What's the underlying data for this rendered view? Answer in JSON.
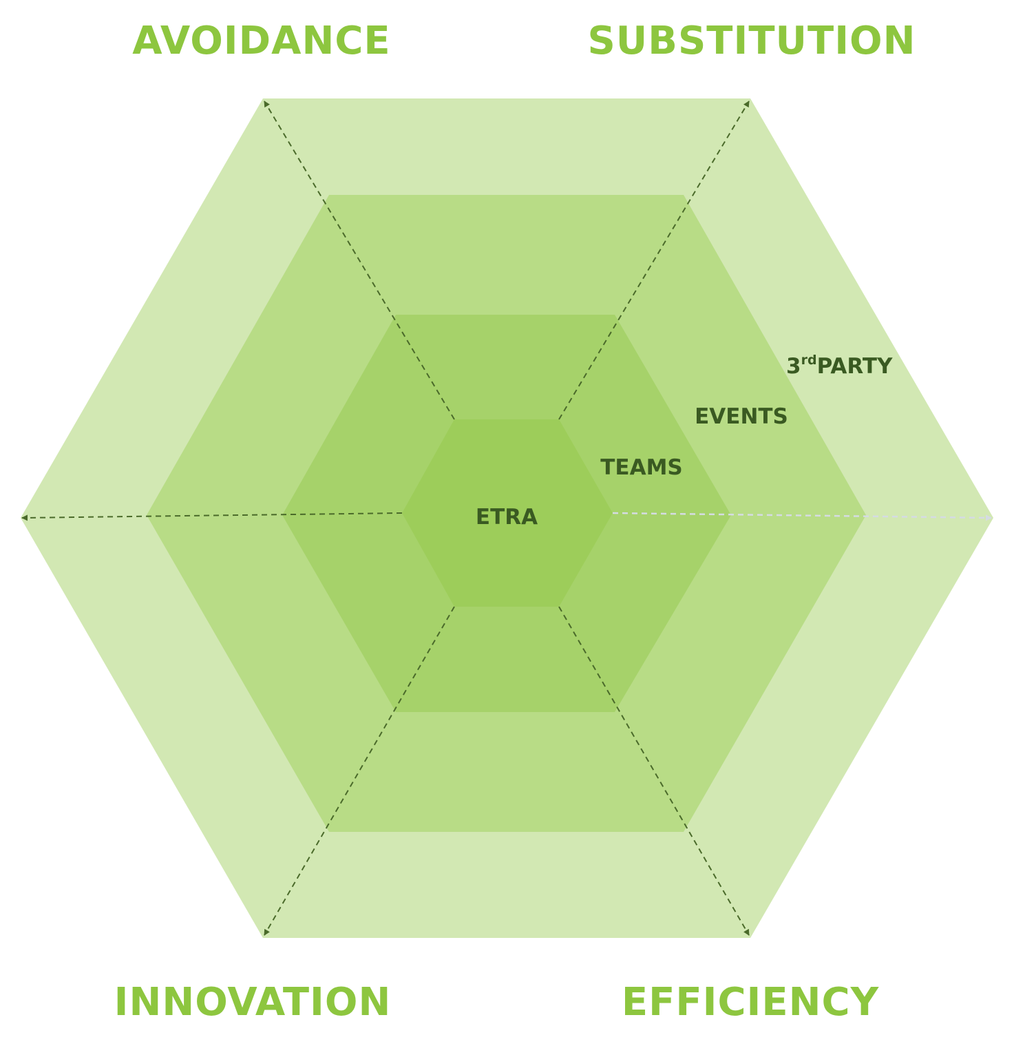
{
  "colors": {
    "title": "#8dc63f",
    "label": "#3a5a22",
    "ring_outer": "#d2e8b3",
    "ring_2": "#b8dc86",
    "ring_3": "#a6d26a",
    "ring_core": "#9dcd5a",
    "axis": "#4a6a2a",
    "axis_highlight": "#d5dbe3"
  },
  "corners": {
    "top_left": "AVOIDANCE",
    "top_right": "SUBSTITUTION",
    "bottom_left": "INNOVATION",
    "bottom_right": "EFFICIENCY"
  },
  "rings": {
    "core": "ETRA",
    "ring2": "TEAMS",
    "ring3": "EVENTS",
    "ring4_prefix": "3",
    "ring4_sup": "rd",
    "ring4_suffix": "PARTY"
  }
}
